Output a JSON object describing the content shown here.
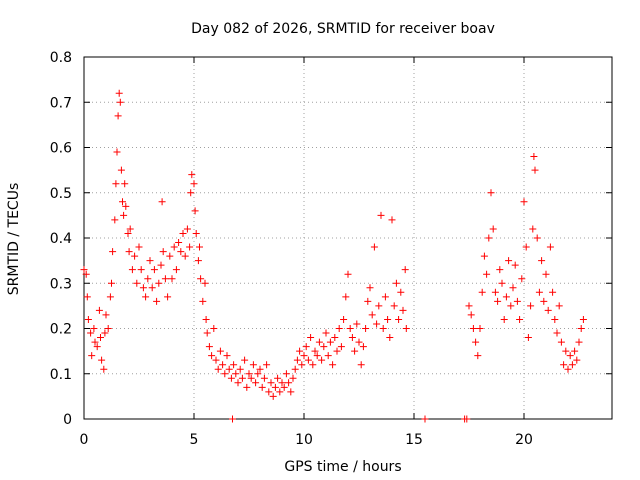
{
  "chart_data": {
    "type": "scatter",
    "title": "Day 082 of 2026, SRMTID for receiver boav",
    "xlabel": "GPS time / hours",
    "ylabel": "SRMTID / TECUs",
    "xlim": [
      0,
      24
    ],
    "ylim": [
      0,
      0.8
    ],
    "xticks": [
      0,
      5,
      10,
      15,
      20
    ],
    "xtick_labels": [
      "0",
      "5",
      "10",
      "15",
      "20"
    ],
    "yticks": [
      0,
      0.1,
      0.2,
      0.3,
      0.4,
      0.5,
      0.6,
      0.7,
      0.8
    ],
    "ytick_labels": [
      "0",
      "0.1",
      "0.2",
      "0.3",
      "0.4",
      "0.5",
      "0.6",
      "0.7",
      "0.8"
    ],
    "grid": true,
    "marker": "+",
    "marker_color": "#ff0000",
    "series": [
      {
        "name": "SRMTID",
        "points": [
          [
            0.0,
            0.33
          ],
          [
            0.1,
            0.32
          ],
          [
            0.15,
            0.27
          ],
          [
            0.2,
            0.22
          ],
          [
            0.3,
            0.19
          ],
          [
            0.35,
            0.14
          ],
          [
            0.45,
            0.2
          ],
          [
            0.5,
            0.17
          ],
          [
            0.6,
            0.16
          ],
          [
            0.7,
            0.24
          ],
          [
            0.75,
            0.18
          ],
          [
            0.8,
            0.13
          ],
          [
            0.9,
            0.11
          ],
          [
            0.95,
            0.19
          ],
          [
            1.0,
            0.23
          ],
          [
            1.1,
            0.2
          ],
          [
            1.2,
            0.27
          ],
          [
            1.25,
            0.3
          ],
          [
            1.3,
            0.37
          ],
          [
            1.4,
            0.44
          ],
          [
            1.45,
            0.52
          ],
          [
            1.5,
            0.59
          ],
          [
            1.55,
            0.67
          ],
          [
            1.6,
            0.72
          ],
          [
            1.65,
            0.7
          ],
          [
            1.7,
            0.55
          ],
          [
            1.75,
            0.48
          ],
          [
            1.8,
            0.45
          ],
          [
            1.85,
            0.52
          ],
          [
            1.9,
            0.47
          ],
          [
            2.0,
            0.41
          ],
          [
            2.05,
            0.37
          ],
          [
            2.1,
            0.42
          ],
          [
            2.2,
            0.33
          ],
          [
            2.3,
            0.36
          ],
          [
            2.4,
            0.3
          ],
          [
            2.5,
            0.38
          ],
          [
            2.6,
            0.33
          ],
          [
            2.7,
            0.29
          ],
          [
            2.8,
            0.27
          ],
          [
            2.9,
            0.31
          ],
          [
            3.0,
            0.35
          ],
          [
            3.1,
            0.29
          ],
          [
            3.2,
            0.33
          ],
          [
            3.3,
            0.26
          ],
          [
            3.4,
            0.3
          ],
          [
            3.5,
            0.34
          ],
          [
            3.55,
            0.48
          ],
          [
            3.6,
            0.37
          ],
          [
            3.7,
            0.31
          ],
          [
            3.8,
            0.27
          ],
          [
            3.9,
            0.36
          ],
          [
            4.0,
            0.31
          ],
          [
            4.1,
            0.38
          ],
          [
            4.2,
            0.33
          ],
          [
            4.3,
            0.39
          ],
          [
            4.4,
            0.37
          ],
          [
            4.5,
            0.41
          ],
          [
            4.6,
            0.36
          ],
          [
            4.7,
            0.42
          ],
          [
            4.8,
            0.38
          ],
          [
            4.85,
            0.5
          ],
          [
            4.9,
            0.54
          ],
          [
            5.0,
            0.52
          ],
          [
            5.05,
            0.46
          ],
          [
            5.1,
            0.41
          ],
          [
            5.2,
            0.35
          ],
          [
            5.25,
            0.38
          ],
          [
            5.3,
            0.31
          ],
          [
            5.4,
            0.26
          ],
          [
            5.5,
            0.3
          ],
          [
            5.55,
            0.22
          ],
          [
            5.6,
            0.19
          ],
          [
            5.7,
            0.16
          ],
          [
            5.8,
            0.14
          ],
          [
            5.9,
            0.2
          ],
          [
            6.0,
            0.13
          ],
          [
            6.1,
            0.11
          ],
          [
            6.2,
            0.15
          ],
          [
            6.3,
            0.12
          ],
          [
            6.4,
            0.1
          ],
          [
            6.5,
            0.14
          ],
          [
            6.6,
            0.11
          ],
          [
            6.7,
            0.09
          ],
          [
            6.75,
            0.0
          ],
          [
            6.8,
            0.12
          ],
          [
            6.9,
            0.1
          ],
          [
            7.0,
            0.08
          ],
          [
            7.1,
            0.11
          ],
          [
            7.2,
            0.09
          ],
          [
            7.3,
            0.13
          ],
          [
            7.4,
            0.07
          ],
          [
            7.5,
            0.1
          ],
          [
            7.6,
            0.09
          ],
          [
            7.7,
            0.12
          ],
          [
            7.8,
            0.08
          ],
          [
            7.9,
            0.1
          ],
          [
            8.0,
            0.11
          ],
          [
            8.1,
            0.07
          ],
          [
            8.2,
            0.09
          ],
          [
            8.3,
            0.12
          ],
          [
            8.4,
            0.06
          ],
          [
            8.5,
            0.08
          ],
          [
            8.6,
            0.05
          ],
          [
            8.7,
            0.07
          ],
          [
            8.8,
            0.09
          ],
          [
            8.9,
            0.06
          ],
          [
            9.0,
            0.08
          ],
          [
            9.1,
            0.07
          ],
          [
            9.2,
            0.1
          ],
          [
            9.3,
            0.08
          ],
          [
            9.4,
            0.06
          ],
          [
            9.5,
            0.09
          ],
          [
            9.6,
            0.11
          ],
          [
            9.7,
            0.13
          ],
          [
            9.8,
            0.15
          ],
          [
            9.9,
            0.12
          ],
          [
            10.0,
            0.14
          ],
          [
            10.1,
            0.16
          ],
          [
            10.2,
            0.13
          ],
          [
            10.3,
            0.18
          ],
          [
            10.4,
            0.12
          ],
          [
            10.5,
            0.15
          ],
          [
            10.6,
            0.14
          ],
          [
            10.7,
            0.17
          ],
          [
            10.8,
            0.13
          ],
          [
            10.9,
            0.16
          ],
          [
            11.0,
            0.19
          ],
          [
            11.1,
            0.14
          ],
          [
            11.2,
            0.17
          ],
          [
            11.3,
            0.12
          ],
          [
            11.4,
            0.18
          ],
          [
            11.5,
            0.15
          ],
          [
            11.6,
            0.2
          ],
          [
            11.7,
            0.16
          ],
          [
            11.8,
            0.22
          ],
          [
            11.9,
            0.27
          ],
          [
            12.0,
            0.32
          ],
          [
            12.1,
            0.2
          ],
          [
            12.2,
            0.18
          ],
          [
            12.3,
            0.15
          ],
          [
            12.4,
            0.21
          ],
          [
            12.5,
            0.17
          ],
          [
            12.6,
            0.12
          ],
          [
            12.7,
            0.16
          ],
          [
            12.8,
            0.2
          ],
          [
            12.9,
            0.26
          ],
          [
            13.0,
            0.29
          ],
          [
            13.1,
            0.23
          ],
          [
            13.2,
            0.38
          ],
          [
            13.3,
            0.21
          ],
          [
            13.4,
            0.25
          ],
          [
            13.5,
            0.45
          ],
          [
            13.6,
            0.2
          ],
          [
            13.7,
            0.27
          ],
          [
            13.8,
            0.22
          ],
          [
            13.9,
            0.18
          ],
          [
            14.0,
            0.44
          ],
          [
            14.1,
            0.25
          ],
          [
            14.2,
            0.3
          ],
          [
            14.3,
            0.22
          ],
          [
            14.4,
            0.28
          ],
          [
            14.5,
            0.24
          ],
          [
            14.6,
            0.33
          ],
          [
            14.65,
            0.2
          ],
          [
            15.5,
            0.0
          ],
          [
            17.3,
            0.0
          ],
          [
            17.4,
            0.0
          ],
          [
            17.5,
            0.25
          ],
          [
            17.6,
            0.23
          ],
          [
            17.7,
            0.2
          ],
          [
            17.8,
            0.17
          ],
          [
            17.9,
            0.14
          ],
          [
            18.0,
            0.2
          ],
          [
            18.1,
            0.28
          ],
          [
            18.2,
            0.36
          ],
          [
            18.3,
            0.32
          ],
          [
            18.4,
            0.4
          ],
          [
            18.5,
            0.5
          ],
          [
            18.6,
            0.42
          ],
          [
            18.7,
            0.28
          ],
          [
            18.8,
            0.26
          ],
          [
            18.9,
            0.33
          ],
          [
            19.0,
            0.3
          ],
          [
            19.1,
            0.22
          ],
          [
            19.2,
            0.27
          ],
          [
            19.3,
            0.35
          ],
          [
            19.4,
            0.25
          ],
          [
            19.5,
            0.29
          ],
          [
            19.6,
            0.34
          ],
          [
            19.7,
            0.26
          ],
          [
            19.8,
            0.22
          ],
          [
            19.9,
            0.31
          ],
          [
            20.0,
            0.48
          ],
          [
            20.1,
            0.38
          ],
          [
            20.2,
            0.18
          ],
          [
            20.3,
            0.25
          ],
          [
            20.4,
            0.42
          ],
          [
            20.45,
            0.58
          ],
          [
            20.5,
            0.55
          ],
          [
            20.6,
            0.4
          ],
          [
            20.7,
            0.28
          ],
          [
            20.8,
            0.35
          ],
          [
            20.9,
            0.26
          ],
          [
            21.0,
            0.32
          ],
          [
            21.1,
            0.24
          ],
          [
            21.2,
            0.38
          ],
          [
            21.3,
            0.28
          ],
          [
            21.4,
            0.22
          ],
          [
            21.5,
            0.19
          ],
          [
            21.6,
            0.25
          ],
          [
            21.7,
            0.17
          ],
          [
            21.8,
            0.12
          ],
          [
            21.9,
            0.15
          ],
          [
            22.0,
            0.11
          ],
          [
            22.1,
            0.14
          ],
          [
            22.2,
            0.12
          ],
          [
            22.3,
            0.15
          ],
          [
            22.4,
            0.13
          ],
          [
            22.5,
            0.17
          ],
          [
            22.6,
            0.2
          ],
          [
            22.7,
            0.22
          ]
        ]
      }
    ]
  }
}
